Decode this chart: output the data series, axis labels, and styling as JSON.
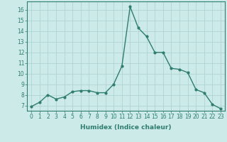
{
  "xlabel": "Humidex (Indice chaleur)",
  "x": [
    0,
    1,
    2,
    3,
    4,
    5,
    6,
    7,
    8,
    9,
    10,
    11,
    12,
    13,
    14,
    15,
    16,
    17,
    18,
    19,
    20,
    21,
    22,
    23
  ],
  "y": [
    6.9,
    7.3,
    8.0,
    7.6,
    7.8,
    8.3,
    8.4,
    8.4,
    8.2,
    8.2,
    9.0,
    10.7,
    16.3,
    14.3,
    13.5,
    12.0,
    12.0,
    10.5,
    10.4,
    10.1,
    8.5,
    8.2,
    7.1,
    6.7
  ],
  "line_color": "#2e7d6e",
  "bg_color": "#cceae8",
  "grid_color": "#b0d4d2",
  "axis_color": "#2e7d6e",
  "ylim": [
    6.5,
    16.8
  ],
  "yticks": [
    7,
    8,
    9,
    10,
    11,
    12,
    13,
    14,
    15,
    16
  ],
  "xticks": [
    0,
    1,
    2,
    3,
    4,
    5,
    6,
    7,
    8,
    9,
    10,
    11,
    12,
    13,
    14,
    15,
    16,
    17,
    18,
    19,
    20,
    21,
    22,
    23
  ],
  "marker": "o",
  "marker_size": 2.0,
  "line_width": 1.0,
  "tick_fontsize": 5.5,
  "xlabel_fontsize": 6.5
}
